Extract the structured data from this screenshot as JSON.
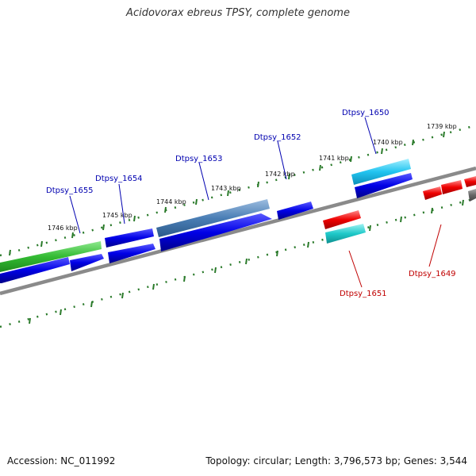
{
  "title": "Acidovorax ebreus TPSY, complete genome",
  "footer": {
    "accession": "Accession: NC_011992",
    "stats": "Topology: circular; Length: 3,796,573 bp; Genes: 3,544"
  },
  "colors": {
    "forward_label": "#0000b0",
    "reverse_label": "#c00000",
    "backbone": "#888888",
    "tick": "#2a7a2a"
  },
  "scale_ticks": [
    "1746 kbp",
    "1745 kbp",
    "1744 kbp",
    "1743 kbp",
    "1742 kbp",
    "1741 kbp",
    "1740 kbp",
    "1739 kbp"
  ],
  "gene_labels": {
    "dtpsy_1655": "Dtpsy_1655",
    "dtpsy_1654": "Dtpsy_1654",
    "dtpsy_1653": "Dtpsy_1653",
    "dtpsy_1652": "Dtpsy_1652",
    "dtpsy_1650": "Dtpsy_1650",
    "dtpsy_1651": "Dtpsy_1651",
    "dtpsy_1649": "Dtpsy_1649"
  }
}
